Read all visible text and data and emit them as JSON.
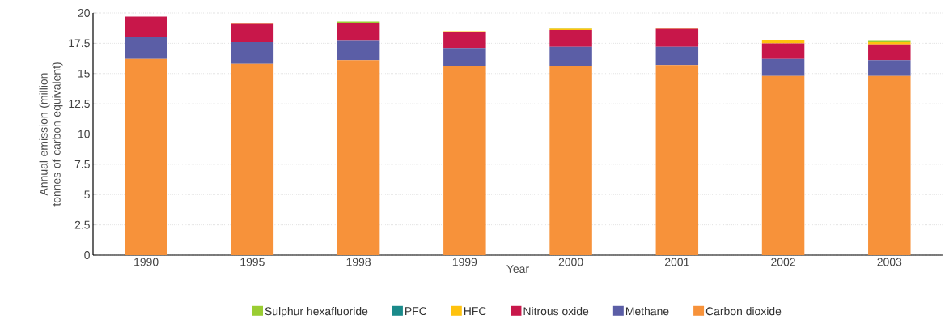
{
  "chart_data": {
    "type": "bar",
    "stacked": true,
    "xlabel": "Year",
    "ylabel": "Annual emission (million tonnes of carbon equivalent)",
    "categories": [
      "1990",
      "1995",
      "1998",
      "1999",
      "2000",
      "2001",
      "2002",
      "2003"
    ],
    "series": [
      {
        "name": "Carbon dioxide",
        "color": "#f7923a",
        "values": [
          16.2,
          15.8,
          16.1,
          15.6,
          15.6,
          15.7,
          14.8,
          14.8
        ]
      },
      {
        "name": "Methane",
        "color": "#5b5ea6",
        "values": [
          1.8,
          1.8,
          1.6,
          1.5,
          1.6,
          1.5,
          1.4,
          1.3
        ]
      },
      {
        "name": "Nitrous oxide",
        "color": "#c8174a",
        "values": [
          1.7,
          1.5,
          1.5,
          1.3,
          1.4,
          1.5,
          1.3,
          1.3
        ]
      },
      {
        "name": "HFC",
        "color": "#ffc20e",
        "values": [
          0,
          0.1,
          0,
          0.1,
          0.1,
          0.1,
          0.3,
          0.2
        ]
      },
      {
        "name": "PFC",
        "color": "#1a8a8a",
        "values": [
          0,
          0,
          0,
          0,
          0,
          0,
          0,
          0
        ]
      },
      {
        "name": "Sulphur hexafluoride",
        "color": "#9acd32",
        "values": [
          0,
          0,
          0.1,
          0,
          0.1,
          0,
          0,
          0.1
        ]
      }
    ],
    "ylim": [
      0,
      20
    ],
    "yticks": [
      0,
      2.5,
      5,
      7.5,
      10,
      12.5,
      15,
      17.5,
      20
    ],
    "grid": "y",
    "legend": "bottom"
  }
}
